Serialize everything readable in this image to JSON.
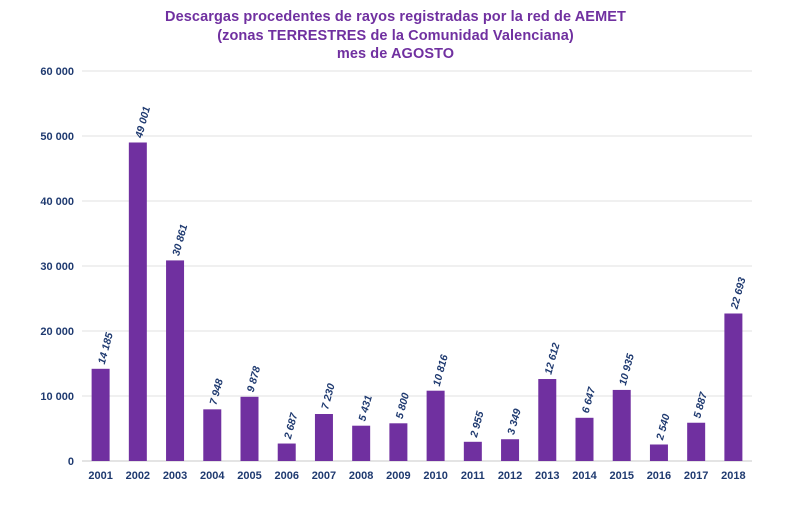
{
  "chart_data": {
    "type": "bar",
    "title_lines": [
      "Descargas procedentes de rayos registradas por la red de AEMET",
      "(zonas TERRESTRES de la Comunidad Valenciana)",
      "mes de AGOSTO"
    ],
    "categories": [
      "2001",
      "2002",
      "2003",
      "2004",
      "2005",
      "2006",
      "2007",
      "2008",
      "2009",
      "2010",
      "2011",
      "2012",
      "2013",
      "2014",
      "2015",
      "2016",
      "2017",
      "2018"
    ],
    "values": [
      14185,
      49001,
      30861,
      7948,
      9878,
      2687,
      7230,
      5431,
      5800,
      10816,
      2955,
      3349,
      12612,
      6647,
      10935,
      2540,
      5887,
      22693
    ],
    "data_labels": [
      "14 185",
      "49 001",
      "30 861",
      "7 948",
      "9 878",
      "2 687",
      "7 230",
      "5 431",
      "5 800",
      "10 816",
      "2 955",
      "3 349",
      "12 612",
      "6 647",
      "10 935",
      "2 540",
      "5 887",
      "22 693"
    ],
    "y_ticks": [
      0,
      10000,
      20000,
      30000,
      40000,
      50000,
      60000
    ],
    "y_tick_labels": [
      "0",
      "10 000",
      "20 000",
      "30 000",
      "40 000",
      "50 000",
      "60 000"
    ],
    "ylim": [
      0,
      60000
    ],
    "xlabel": "",
    "ylabel": "",
    "grid": true,
    "legend": "none",
    "bar_color": "#7030a0",
    "text_color": "#1f3a70"
  }
}
